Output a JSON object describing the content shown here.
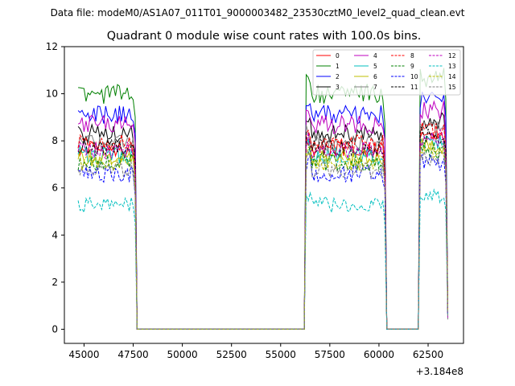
{
  "figure": {
    "suptitle": "Data file: modeM0/AS1A07_011T01_9000003482_23530cztM0_level2_quad_clean.evt"
  },
  "chart_data": {
    "type": "line",
    "title": "Quadrant 0 module wise count rates with 100.0s bins.",
    "xlabel": "",
    "ylabel": "",
    "x_offset_label": "+3.184e8",
    "xlim": [
      44000,
      64300
    ],
    "ylim": [
      -0.6,
      12
    ],
    "xticks": [
      45000,
      47500,
      50000,
      52500,
      55000,
      57500,
      60000,
      62500
    ],
    "xtick_labels": [
      "45000",
      "47500",
      "50000",
      "52500",
      "55000",
      "57500",
      "60000",
      "62500"
    ],
    "yticks": [
      0,
      2,
      4,
      6,
      8,
      10,
      12
    ],
    "ytick_labels": [
      "0",
      "2",
      "4",
      "6",
      "8",
      "10",
      "12"
    ],
    "grid": false,
    "legend_location": "upper-right",
    "legend_columns": 4,
    "time_binning": {
      "bin_width": 100,
      "segments": [
        {
          "on_start": 44700,
          "on_end": 47600,
          "off_start": 47700,
          "off_end": 56200
        },
        {
          "on_start": 56300,
          "on_end": 60300,
          "off_start": 60400,
          "off_end": 62000
        },
        {
          "on_start": 62100,
          "on_end": 63400,
          "off_start": null,
          "off_end": null
        }
      ]
    },
    "series": [
      {
        "name": "0",
        "color": "#ff0000",
        "style": "solid",
        "level": 7.7
      },
      {
        "name": "1",
        "color": "#008000",
        "style": "solid",
        "level": 10.0
      },
      {
        "name": "2",
        "color": "#0000ff",
        "style": "solid",
        "level": 9.1
      },
      {
        "name": "3",
        "color": "#000000",
        "style": "solid",
        "level": 8.3
      },
      {
        "name": "4",
        "color": "#bf00bf",
        "style": "solid",
        "level": 8.7
      },
      {
        "name": "5",
        "color": "#00bfbf",
        "style": "solid",
        "level": 7.4
      },
      {
        "name": "6",
        "color": "#bfbf00",
        "style": "solid",
        "level": 7.3
      },
      {
        "name": "7",
        "color": "#808080",
        "style": "solid",
        "level": 7.9
      },
      {
        "name": "8",
        "color": "#ff0000",
        "style": "dashed",
        "level": 7.9
      },
      {
        "name": "9",
        "color": "#008000",
        "style": "dashed",
        "level": 7.1
      },
      {
        "name": "10",
        "color": "#0000ff",
        "style": "dashed",
        "level": 6.6
      },
      {
        "name": "11",
        "color": "#000000",
        "style": "dashed",
        "level": 7.7
      },
      {
        "name": "12",
        "color": "#bf00bf",
        "style": "dashed",
        "level": 7.6
      },
      {
        "name": "13",
        "color": "#00bfbf",
        "style": "dashed",
        "level": 5.3
      },
      {
        "name": "14",
        "color": "#bfbf00",
        "style": "dashed",
        "level": 7.1
      },
      {
        "name": "15",
        "color": "#808080",
        "style": "dashed",
        "level": 6.8
      }
    ]
  }
}
